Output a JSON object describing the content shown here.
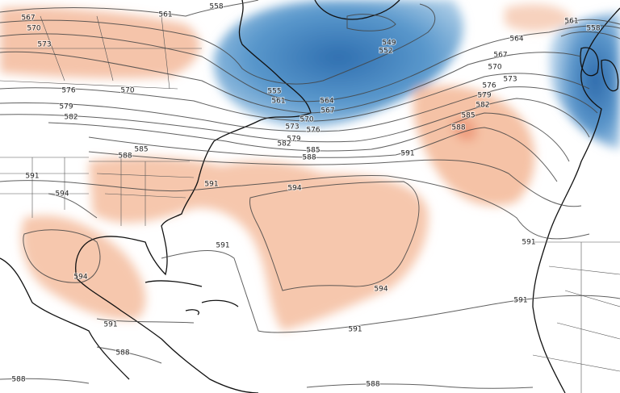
{
  "contour_labels": [
    "561",
    "558",
    "567",
    "570",
    "573",
    "576",
    "570",
    "579",
    "582",
    "585",
    "588",
    "591",
    "594",
    "591",
    "594",
    "549",
    "552",
    "555",
    "561",
    "564",
    "567",
    "570",
    "573",
    "576",
    "579",
    "582",
    "585",
    "588",
    "591",
    "564",
    "567",
    "570",
    "573",
    "576",
    "579",
    "582",
    "585",
    "588",
    "561",
    "558",
    "591",
    "594",
    "594",
    "591",
    "591",
    "591",
    "588",
    "591",
    "588",
    "588"
  ]
}
